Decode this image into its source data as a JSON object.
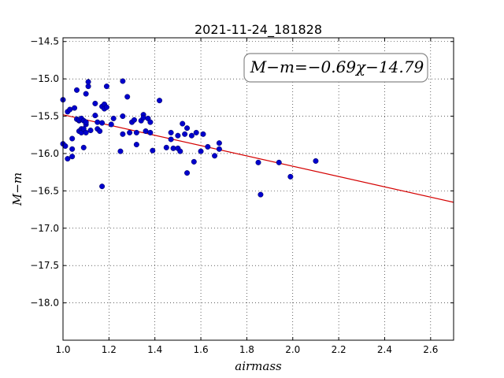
{
  "chart_data": {
    "type": "scatter",
    "title": "2021-11-24_181828",
    "xlabel": "airmass",
    "ylabel": "M−m",
    "xlim": [
      1.0,
      2.7
    ],
    "ylim": [
      -18.5,
      -14.45
    ],
    "y_inverted": true,
    "grid": true,
    "x_ticks": [
      1.0,
      1.2,
      1.4,
      1.6,
      1.8,
      2.0,
      2.2,
      2.4,
      2.6
    ],
    "x_tick_labels": [
      "1.0",
      "1.2",
      "1.4",
      "1.6",
      "1.8",
      "2.0",
      "2.2",
      "2.4",
      "2.6"
    ],
    "y_ticks": [
      -14.5,
      -15.0,
      -15.5,
      -16.0,
      -16.5,
      -17.0,
      -17.5,
      -18.0
    ],
    "y_tick_labels": [
      "−14.5",
      "−15.0",
      "−15.5",
      "−16.0",
      "−16.5",
      "−17.0",
      "−17.5",
      "−18.0"
    ],
    "annotation": "M−m=−0.69χ−14.79",
    "fit": {
      "slope": -0.69,
      "intercept": -14.79,
      "color": "#d40000"
    },
    "point_color": "#0000cc",
    "points": [
      [
        1.0,
        -15.28
      ],
      [
        1.0,
        -15.87
      ],
      [
        1.01,
        -15.9
      ],
      [
        1.02,
        -15.44
      ],
      [
        1.02,
        -16.07
      ],
      [
        1.03,
        -15.41
      ],
      [
        1.04,
        -16.04
      ],
      [
        1.04,
        -15.8
      ],
      [
        1.04,
        -15.94
      ],
      [
        1.05,
        -15.39
      ],
      [
        1.06,
        -15.15
      ],
      [
        1.06,
        -15.54
      ],
      [
        1.07,
        -15.56
      ],
      [
        1.07,
        -15.7
      ],
      [
        1.07,
        -15.55
      ],
      [
        1.08,
        -15.67
      ],
      [
        1.08,
        -15.72
      ],
      [
        1.08,
        -15.53
      ],
      [
        1.09,
        -15.56
      ],
      [
        1.09,
        -15.67
      ],
      [
        1.09,
        -15.92
      ],
      [
        1.1,
        -15.61
      ],
      [
        1.1,
        -15.2
      ],
      [
        1.1,
        -15.72
      ],
      [
        1.1,
        -15.58
      ],
      [
        1.11,
        -15.1
      ],
      [
        1.11,
        -15.04
      ],
      [
        1.12,
        -15.69
      ],
      [
        1.14,
        -15.49
      ],
      [
        1.14,
        -15.33
      ],
      [
        1.15,
        -15.67
      ],
      [
        1.15,
        -15.58
      ],
      [
        1.16,
        -15.7
      ],
      [
        1.17,
        -15.37
      ],
      [
        1.17,
        -15.59
      ],
      [
        1.17,
        -16.44
      ],
      [
        1.18,
        -15.34
      ],
      [
        1.18,
        -15.4
      ],
      [
        1.19,
        -15.1
      ],
      [
        1.19,
        -15.38
      ],
      [
        1.21,
        -15.61
      ],
      [
        1.22,
        -15.53
      ],
      [
        1.25,
        -15.97
      ],
      [
        1.26,
        -15.03
      ],
      [
        1.26,
        -15.5
      ],
      [
        1.26,
        -15.74
      ],
      [
        1.28,
        -15.24
      ],
      [
        1.29,
        -15.72
      ],
      [
        1.3,
        -15.58
      ],
      [
        1.31,
        -15.55
      ],
      [
        1.32,
        -15.72
      ],
      [
        1.32,
        -15.88
      ],
      [
        1.34,
        -15.56
      ],
      [
        1.35,
        -15.48
      ],
      [
        1.35,
        -15.52
      ],
      [
        1.36,
        -15.7
      ],
      [
        1.37,
        -15.53
      ],
      [
        1.38,
        -15.58
      ],
      [
        1.38,
        -15.72
      ],
      [
        1.39,
        -15.96
      ],
      [
        1.42,
        -15.29
      ],
      [
        1.45,
        -15.92
      ],
      [
        1.47,
        -15.72
      ],
      [
        1.47,
        -15.81
      ],
      [
        1.48,
        -15.93
      ],
      [
        1.5,
        -15.76
      ],
      [
        1.5,
        -15.93
      ],
      [
        1.51,
        -15.97
      ],
      [
        1.52,
        -15.6
      ],
      [
        1.53,
        -15.74
      ],
      [
        1.54,
        -15.66
      ],
      [
        1.54,
        -16.26
      ],
      [
        1.56,
        -15.76
      ],
      [
        1.57,
        -16.11
      ],
      [
        1.58,
        -15.72
      ],
      [
        1.6,
        -15.97
      ],
      [
        1.61,
        -15.74
      ],
      [
        1.63,
        -15.91
      ],
      [
        1.66,
        -16.03
      ],
      [
        1.68,
        -15.86
      ],
      [
        1.68,
        -15.94
      ],
      [
        1.85,
        -16.12
      ],
      [
        1.86,
        -16.55
      ],
      [
        1.94,
        -16.12
      ],
      [
        1.99,
        -16.31
      ],
      [
        2.1,
        -16.1
      ]
    ]
  }
}
